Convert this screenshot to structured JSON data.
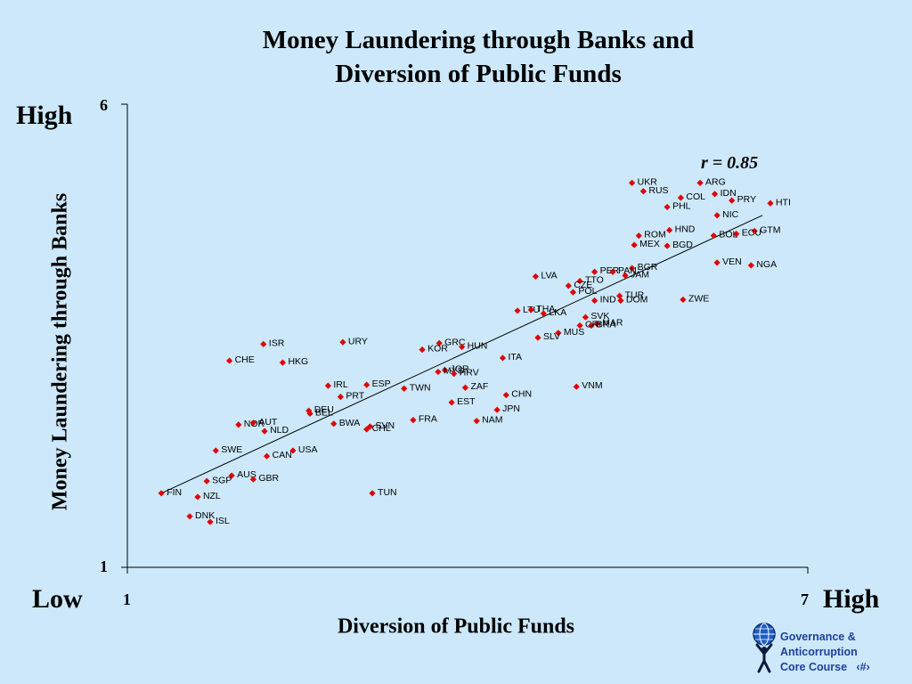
{
  "slide": {
    "title_line1": "Money Laundering through Banks and",
    "title_line2": "Diversion of Public Funds",
    "y_high": "High",
    "x_low": "Low",
    "x_high": "High",
    "correlation": "r = 0.85",
    "logo_line1": "Governance &",
    "logo_line2": "Anticorruption",
    "logo_line3": "Core Course",
    "page_marker": "‹#›"
  },
  "colors": {
    "point": "#e00000",
    "background": "#cce8fa",
    "logo": "#1f3f9f"
  },
  "chart_data": {
    "type": "scatter",
    "xlabel": "Diversion of Public Funds",
    "ylabel": "Money Laundering through Banks",
    "xlim": [
      1,
      7
    ],
    "ylim": [
      1,
      6
    ],
    "x_ticks": [
      "1",
      "7"
    ],
    "y_ticks": [
      "1",
      "6"
    ],
    "grid": false,
    "trend_line": [
      [
        1.3,
        1.8
      ],
      [
        6.6,
        4.8
      ]
    ],
    "points": [
      {
        "label": "UKR",
        "x": 5.45,
        "y": 5.15
      },
      {
        "label": "ARG",
        "x": 6.05,
        "y": 5.15
      },
      {
        "label": "RUS",
        "x": 5.55,
        "y": 5.06
      },
      {
        "label": "IDN",
        "x": 6.18,
        "y": 5.03
      },
      {
        "label": "COL",
        "x": 5.88,
        "y": 4.99
      },
      {
        "label": "PRY",
        "x": 6.33,
        "y": 4.96
      },
      {
        "label": "HTI",
        "x": 6.67,
        "y": 4.93
      },
      {
        "label": "PHL",
        "x": 5.76,
        "y": 4.89
      },
      {
        "label": "NIC",
        "x": 6.2,
        "y": 4.8
      },
      {
        "label": "HND",
        "x": 5.78,
        "y": 4.64
      },
      {
        "label": "ROM",
        "x": 5.51,
        "y": 4.58
      },
      {
        "label": "GTM",
        "x": 6.53,
        "y": 4.63
      },
      {
        "label": "ECU",
        "x": 6.37,
        "y": 4.6
      },
      {
        "label": "BOL",
        "x": 6.17,
        "y": 4.58
      },
      {
        "label": "MEX",
        "x": 5.47,
        "y": 4.48
      },
      {
        "label": "BGD",
        "x": 5.76,
        "y": 4.47
      },
      {
        "label": "VEN",
        "x": 6.2,
        "y": 4.29
      },
      {
        "label": "NGA",
        "x": 6.5,
        "y": 4.26
      },
      {
        "label": "BGR",
        "x": 5.45,
        "y": 4.23
      },
      {
        "label": "PER",
        "x": 5.12,
        "y": 4.19
      },
      {
        "label": "PAN",
        "x": 5.28,
        "y": 4.19
      },
      {
        "label": "JAM",
        "x": 5.39,
        "y": 4.15
      },
      {
        "label": "LVA",
        "x": 4.6,
        "y": 4.14
      },
      {
        "label": "TTO",
        "x": 4.99,
        "y": 4.09
      },
      {
        "label": "CZE",
        "x": 4.89,
        "y": 4.04
      },
      {
        "label": "POL",
        "x": 4.93,
        "y": 3.97
      },
      {
        "label": "TUR",
        "x": 5.34,
        "y": 3.93
      },
      {
        "label": "ZWE",
        "x": 5.9,
        "y": 3.89
      },
      {
        "label": "IND",
        "x": 5.12,
        "y": 3.88
      },
      {
        "label": "DOM",
        "x": 5.35,
        "y": 3.88
      },
      {
        "label": "LTU",
        "x": 4.44,
        "y": 3.77
      },
      {
        "label": "THA",
        "x": 4.56,
        "y": 3.78
      },
      {
        "label": "LKA",
        "x": 4.67,
        "y": 3.74
      },
      {
        "label": "SVK",
        "x": 5.04,
        "y": 3.7
      },
      {
        "label": "MAR",
        "x": 5.14,
        "y": 3.63
      },
      {
        "label": "BRA",
        "x": 5.09,
        "y": 3.61
      },
      {
        "label": "CRI",
        "x": 4.99,
        "y": 3.61
      },
      {
        "label": "MUS",
        "x": 4.8,
        "y": 3.53
      },
      {
        "label": "SLV",
        "x": 4.62,
        "y": 3.48
      },
      {
        "label": "URY",
        "x": 2.9,
        "y": 3.43
      },
      {
        "label": "ISR",
        "x": 2.2,
        "y": 3.41
      },
      {
        "label": "GRC",
        "x": 3.75,
        "y": 3.42
      },
      {
        "label": "KOR",
        "x": 3.6,
        "y": 3.35
      },
      {
        "label": "HUN",
        "x": 3.95,
        "y": 3.38
      },
      {
        "label": "ITA",
        "x": 4.31,
        "y": 3.26
      },
      {
        "label": "CHE",
        "x": 1.9,
        "y": 3.23
      },
      {
        "label": "HKG",
        "x": 2.37,
        "y": 3.21
      },
      {
        "label": "JOR",
        "x": 3.8,
        "y": 3.13
      },
      {
        "label": "MYS",
        "x": 3.74,
        "y": 3.11
      },
      {
        "label": "HRV",
        "x": 3.88,
        "y": 3.09
      },
      {
        "label": "IRL",
        "x": 2.77,
        "y": 2.96
      },
      {
        "label": "ESP",
        "x": 3.11,
        "y": 2.97
      },
      {
        "label": "TWN",
        "x": 3.44,
        "y": 2.93
      },
      {
        "label": "ZAF",
        "x": 3.98,
        "y": 2.94
      },
      {
        "label": "VNM",
        "x": 4.96,
        "y": 2.95
      },
      {
        "label": "PRT",
        "x": 2.88,
        "y": 2.84
      },
      {
        "label": "CHN",
        "x": 4.34,
        "y": 2.86
      },
      {
        "label": "EST",
        "x": 3.86,
        "y": 2.78
      },
      {
        "label": "JPN",
        "x": 4.26,
        "y": 2.7
      },
      {
        "label": "DEU",
        "x": 2.6,
        "y": 2.69
      },
      {
        "label": "BEL",
        "x": 2.61,
        "y": 2.66
      },
      {
        "label": "FRA",
        "x": 3.52,
        "y": 2.59
      },
      {
        "label": "NAM",
        "x": 4.08,
        "y": 2.58
      },
      {
        "label": "NOR",
        "x": 1.98,
        "y": 2.54
      },
      {
        "label": "AUT",
        "x": 2.11,
        "y": 2.56
      },
      {
        "label": "BWA",
        "x": 2.82,
        "y": 2.55
      },
      {
        "label": "NLD",
        "x": 2.21,
        "y": 2.47
      },
      {
        "label": "SVN",
        "x": 3.14,
        "y": 2.52
      },
      {
        "label": "CHL",
        "x": 3.11,
        "y": 2.49
      },
      {
        "label": "SWE",
        "x": 1.78,
        "y": 2.26
      },
      {
        "label": "USA",
        "x": 2.46,
        "y": 2.26
      },
      {
        "label": "CAN",
        "x": 2.23,
        "y": 2.2
      },
      {
        "label": "AUS",
        "x": 1.92,
        "y": 1.99
      },
      {
        "label": "GBR",
        "x": 2.11,
        "y": 1.95
      },
      {
        "label": "SGP",
        "x": 1.7,
        "y": 1.93
      },
      {
        "label": "FIN",
        "x": 1.3,
        "y": 1.8
      },
      {
        "label": "TUN",
        "x": 3.16,
        "y": 1.8
      },
      {
        "label": "NZL",
        "x": 1.62,
        "y": 1.76
      },
      {
        "label": "DNK",
        "x": 1.55,
        "y": 1.55
      },
      {
        "label": "ISL",
        "x": 1.73,
        "y": 1.49
      }
    ]
  }
}
